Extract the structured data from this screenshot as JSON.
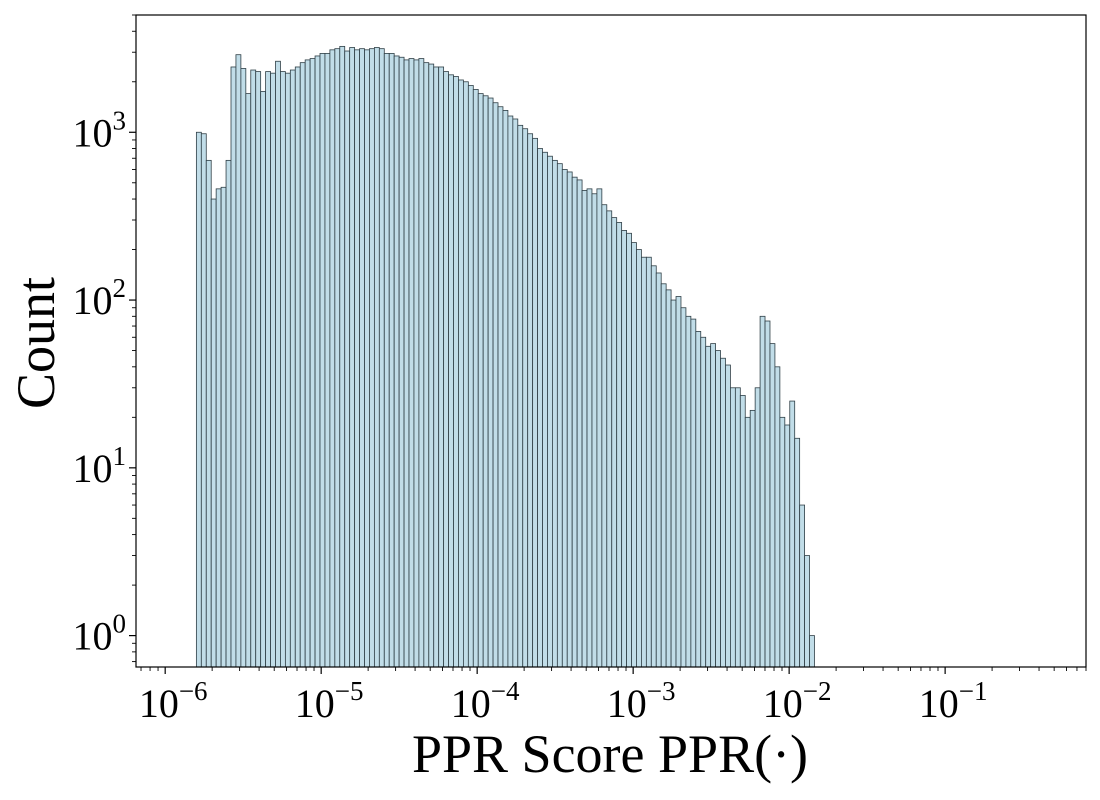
{
  "chart_data": {
    "type": "bar",
    "title": "",
    "xlabel": "PPR Score PPR(·)",
    "ylabel": "Count",
    "x_scale": "log",
    "y_scale": "log",
    "xlim": [
      6.5e-07,
      0.8
    ],
    "ylim": [
      0.65,
      5000
    ],
    "grid": false,
    "legend": "none",
    "colors": {
      "bar_fill": "#c1dde8",
      "bar_edge": "#2f3f46",
      "axis": "#000000"
    },
    "x_ticks": [
      {
        "base": "10",
        "exp": "−6",
        "value": 1e-06
      },
      {
        "base": "10",
        "exp": "−5",
        "value": 1e-05
      },
      {
        "base": "10",
        "exp": "−4",
        "value": 0.0001
      },
      {
        "base": "10",
        "exp": "−3",
        "value": 0.001
      },
      {
        "base": "10",
        "exp": "−2",
        "value": 0.01
      },
      {
        "base": "10",
        "exp": "−1",
        "value": 0.1
      }
    ],
    "y_ticks": [
      {
        "base": "10",
        "exp": "0",
        "value": 1
      },
      {
        "base": "10",
        "exp": "1",
        "value": 10
      },
      {
        "base": "10",
        "exp": "2",
        "value": 100
      },
      {
        "base": "10",
        "exp": "3",
        "value": 1000
      }
    ],
    "bin_log10_start": -5.8,
    "bin_log10_width": 0.0317,
    "values": [
      1000,
      980,
      680,
      400,
      460,
      470,
      680,
      2450,
      2900,
      2400,
      1700,
      2350,
      2300,
      1750,
      2300,
      2250,
      2650,
      2300,
      2250,
      2350,
      2450,
      2600,
      2700,
      2750,
      2850,
      2950,
      2950,
      3100,
      3150,
      3250,
      3050,
      3200,
      3100,
      3150,
      3100,
      3150,
      3200,
      3150,
      2950,
      2950,
      2850,
      2800,
      2700,
      2750,
      2700,
      2750,
      2600,
      2550,
      2450,
      2450,
      2300,
      2200,
      2150,
      2050,
      2000,
      1900,
      1800,
      1700,
      1650,
      1600,
      1500,
      1420,
      1350,
      1250,
      1200,
      1100,
      1050,
      980,
      920,
      800,
      760,
      720,
      680,
      650,
      600,
      580,
      540,
      520,
      450,
      460,
      430,
      460,
      370,
      340,
      310,
      290,
      260,
      250,
      220,
      200,
      180,
      180,
      160,
      145,
      125,
      115,
      100,
      105,
      90,
      80,
      77,
      65,
      60,
      53,
      55,
      50,
      45,
      41,
      30,
      30,
      27,
      20,
      22,
      30,
      80,
      75,
      55,
      40,
      20,
      18,
      25,
      15,
      6,
      3,
      1
    ]
  }
}
